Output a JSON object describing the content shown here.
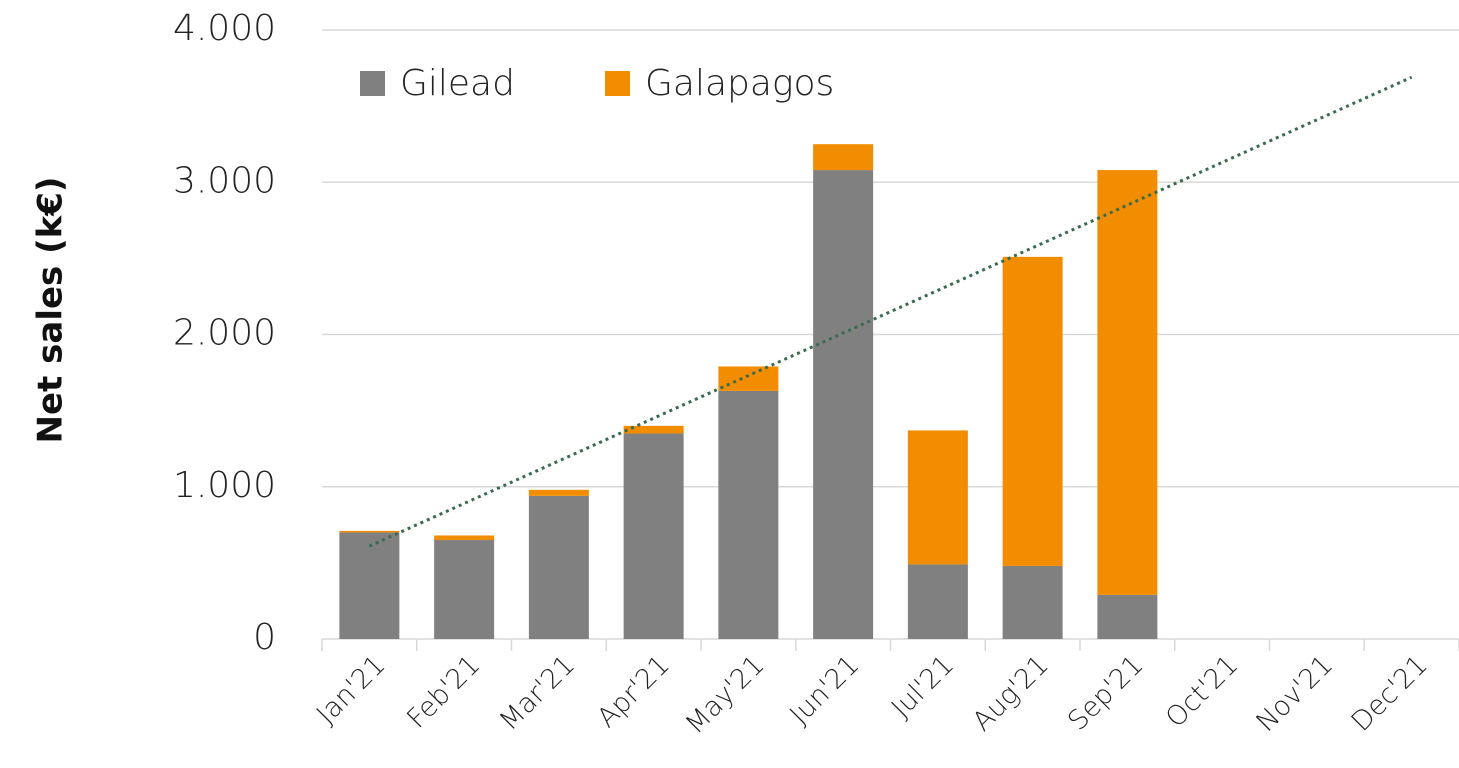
{
  "chart_data": {
    "type": "bar",
    "stacked": true,
    "y_axis_label": "Net sales (k€)",
    "categories": [
      "Jan'21",
      "Feb'21",
      "Mar'21",
      "Apr'21",
      "May'21",
      "Jun'21",
      "Jul'21",
      "Aug'21",
      "Sep'21",
      "Oct'21",
      "Nov'21",
      "Dec'21"
    ],
    "series": [
      {
        "name": "Gilead",
        "color": "#808080",
        "values": [
          700,
          650,
          940,
          1350,
          1630,
          3080,
          490,
          480,
          290,
          null,
          null,
          null
        ]
      },
      {
        "name": "Galapagos",
        "color": "#f28c00",
        "values": [
          10,
          30,
          40,
          50,
          160,
          170,
          880,
          2030,
          2790,
          null,
          null,
          null
        ]
      }
    ],
    "trend": {
      "color": "#3a6b4f",
      "values": [
        610,
        3690
      ]
    },
    "ylim": [
      0,
      4000
    ],
    "yticks": [
      0,
      {
        "value": 1000,
        "label": "1.000"
      },
      {
        "value": 2000,
        "label": "2.000"
      },
      {
        "value": 3000,
        "label": "3.000"
      },
      {
        "value": 4000,
        "label": "4.000"
      }
    ],
    "grid": true,
    "legend": "top-left"
  }
}
